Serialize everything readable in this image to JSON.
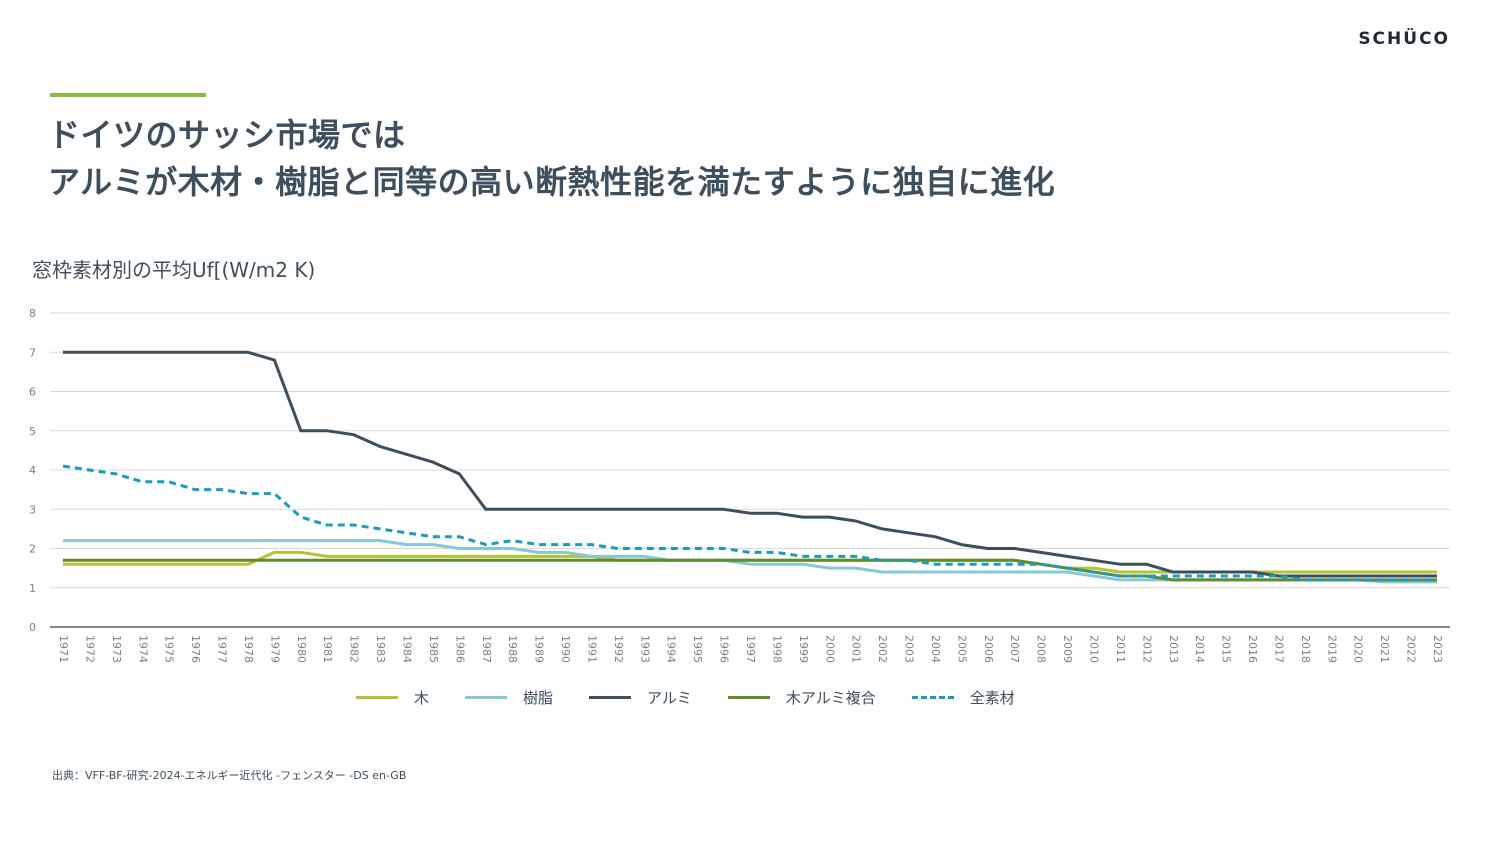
{
  "brand": "SCHÜCO",
  "title_line1": "ドイツのサッシ市場では",
  "title_line2": "アルミが木材・樹脂と同等の高い断熱性能を満たすように独自に進化",
  "source": "出典：VFF-BF-研究-2024-エネルギー近代化 -フェンスター -DS en-GB",
  "colors": {
    "accent": "#8dbb3c",
    "title": "#3d4f5c",
    "grid": "#d9d9d9",
    "axis": "#404040"
  },
  "chart_data": {
    "type": "line",
    "title": "窓枠素材別の平均Uf[(W/m2 K)",
    "xlabel": "",
    "ylabel": "",
    "ylim": [
      0,
      8
    ],
    "yticks": [
      "0",
      "1",
      "2",
      "3",
      "4",
      "5",
      "6",
      "7",
      "8"
    ],
    "grid": true,
    "legend_position": "bottom",
    "categories": [
      "1971",
      "1972",
      "1973",
      "1974",
      "1975",
      "1976",
      "1977",
      "1978",
      "1979",
      "1980",
      "1981",
      "1982",
      "1983",
      "1984",
      "1985",
      "1986",
      "1987",
      "1988",
      "1989",
      "1990",
      "1991",
      "1992",
      "1993",
      "1994",
      "1995",
      "1996",
      "1997",
      "1998",
      "1999",
      "2000",
      "2001",
      "2002",
      "2003",
      "2004",
      "2005",
      "2006",
      "2007",
      "2008",
      "2009",
      "2010",
      "2011",
      "2012",
      "2013",
      "2014",
      "2015",
      "2016",
      "2017",
      "2018",
      "2019",
      "2020",
      "2021",
      "2022",
      "2023"
    ],
    "series": [
      {
        "name": "木",
        "color": "#b5c334",
        "dashed": false,
        "values": [
          1.6,
          1.6,
          1.6,
          1.6,
          1.6,
          1.6,
          1.6,
          1.6,
          1.9,
          1.9,
          1.8,
          1.8,
          1.8,
          1.8,
          1.8,
          1.8,
          1.8,
          1.8,
          1.8,
          1.8,
          1.8,
          1.7,
          1.7,
          1.7,
          1.7,
          1.7,
          1.7,
          1.7,
          1.7,
          1.7,
          1.7,
          1.7,
          1.7,
          1.7,
          1.7,
          1.7,
          1.7,
          1.6,
          1.5,
          1.5,
          1.4,
          1.4,
          1.4,
          1.4,
          1.4,
          1.4,
          1.4,
          1.4,
          1.4,
          1.4,
          1.4,
          1.4,
          1.4
        ]
      },
      {
        "name": "樹脂",
        "color": "#86c8d6",
        "dashed": false,
        "values": [
          2.2,
          2.2,
          2.2,
          2.2,
          2.2,
          2.2,
          2.2,
          2.2,
          2.2,
          2.2,
          2.2,
          2.2,
          2.2,
          2.1,
          2.1,
          2.0,
          2.0,
          2.0,
          1.9,
          1.9,
          1.8,
          1.8,
          1.8,
          1.7,
          1.7,
          1.7,
          1.6,
          1.6,
          1.6,
          1.5,
          1.5,
          1.4,
          1.4,
          1.4,
          1.4,
          1.4,
          1.4,
          1.4,
          1.4,
          1.3,
          1.2,
          1.2,
          1.2,
          1.2,
          1.2,
          1.2,
          1.2,
          1.2,
          1.2,
          1.2,
          1.15,
          1.15,
          1.15
        ]
      },
      {
        "name": "アルミ",
        "color": "#3d4f5c",
        "dashed": false,
        "values": [
          7.0,
          7.0,
          7.0,
          7.0,
          7.0,
          7.0,
          7.0,
          7.0,
          6.8,
          5.0,
          5.0,
          4.9,
          4.6,
          4.4,
          4.2,
          3.9,
          3.0,
          3.0,
          3.0,
          3.0,
          3.0,
          3.0,
          3.0,
          3.0,
          3.0,
          3.0,
          2.9,
          2.9,
          2.8,
          2.8,
          2.7,
          2.5,
          2.4,
          2.3,
          2.1,
          2.0,
          2.0,
          1.9,
          1.8,
          1.7,
          1.6,
          1.6,
          1.4,
          1.4,
          1.4,
          1.4,
          1.3,
          1.3,
          1.3,
          1.3,
          1.3,
          1.3,
          1.3
        ]
      },
      {
        "name": "木アルミ複合",
        "color": "#5e8c2f",
        "dashed": false,
        "values": [
          1.7,
          1.7,
          1.7,
          1.7,
          1.7,
          1.7,
          1.7,
          1.7,
          1.7,
          1.7,
          1.7,
          1.7,
          1.7,
          1.7,
          1.7,
          1.7,
          1.7,
          1.7,
          1.7,
          1.7,
          1.7,
          1.7,
          1.7,
          1.7,
          1.7,
          1.7,
          1.7,
          1.7,
          1.7,
          1.7,
          1.7,
          1.7,
          1.7,
          1.7,
          1.7,
          1.7,
          1.7,
          1.6,
          1.5,
          1.4,
          1.3,
          1.3,
          1.2,
          1.2,
          1.2,
          1.2,
          1.2,
          1.2,
          1.2,
          1.2,
          1.2,
          1.2,
          1.2
        ]
      },
      {
        "name": "全素材",
        "color": "#1a9bc0",
        "dashed": true,
        "values": [
          4.1,
          4.0,
          3.9,
          3.7,
          3.7,
          3.5,
          3.5,
          3.4,
          3.4,
          2.8,
          2.6,
          2.6,
          2.5,
          2.4,
          2.3,
          2.3,
          2.1,
          2.2,
          2.1,
          2.1,
          2.1,
          2.0,
          2.0,
          2.0,
          2.0,
          2.0,
          1.9,
          1.9,
          1.8,
          1.8,
          1.8,
          1.7,
          1.7,
          1.6,
          1.6,
          1.6,
          1.6,
          1.6,
          1.5,
          1.4,
          1.3,
          1.3,
          1.3,
          1.3,
          1.3,
          1.3,
          1.3,
          1.2,
          1.2,
          1.2,
          1.2,
          1.2,
          1.2
        ]
      }
    ]
  }
}
